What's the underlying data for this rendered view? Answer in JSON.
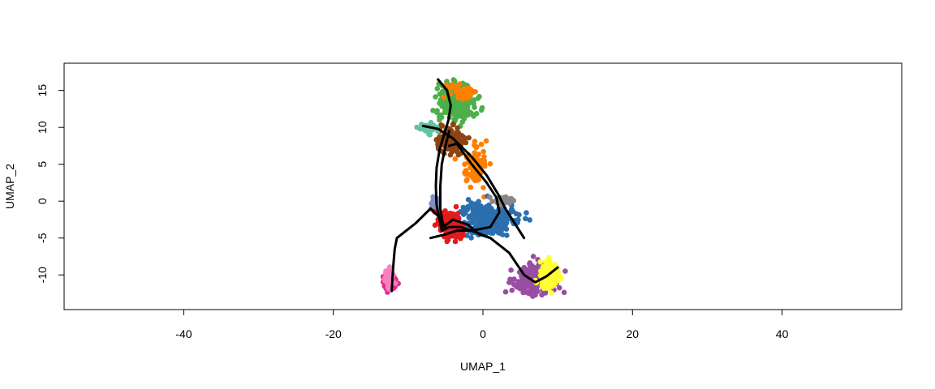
{
  "chart_data": {
    "type": "scatter",
    "title": "",
    "xlabel": "UMAP_1",
    "ylabel": "UMAP_2",
    "xlim": [
      -56,
      56
    ],
    "ylim": [
      -14.7,
      18.7
    ],
    "xticks": [
      -40,
      -20,
      0,
      20,
      40
    ],
    "yticks": [
      -10,
      -5,
      0,
      5,
      10,
      15
    ],
    "grid": false,
    "legend": "none",
    "clusters": [
      {
        "color": "#4DAF4A",
        "center": [
          -3.5,
          13.5
        ],
        "spread": [
          2.0,
          2.2
        ],
        "count": 260
      },
      {
        "color": "#8B4513",
        "center": [
          -4.5,
          8.2
        ],
        "spread": [
          1.6,
          1.5
        ],
        "count": 130
      },
      {
        "color": "#66C2A5",
        "center": [
          -7.5,
          10.0
        ],
        "spread": [
          1.0,
          0.5
        ],
        "count": 45
      },
      {
        "color": "#FF7F00",
        "center": [
          -1.0,
          4.8
        ],
        "spread": [
          1.3,
          2.2
        ],
        "count": 90
      },
      {
        "color": "#FF7F00",
        "center": [
          -3.0,
          15.0
        ],
        "spread": [
          1.5,
          1.0
        ],
        "count": 40
      },
      {
        "color": "#2C6FAE",
        "center": [
          0.5,
          -2.5
        ],
        "spread": [
          3.0,
          1.8
        ],
        "count": 300
      },
      {
        "color": "#888888",
        "center": [
          2.8,
          0.0
        ],
        "spread": [
          1.1,
          0.6
        ],
        "count": 45
      },
      {
        "color": "#7F8DBF",
        "center": [
          -6.5,
          -0.5
        ],
        "spread": [
          0.5,
          0.9
        ],
        "count": 30
      },
      {
        "color": "#E41A1C",
        "center": [
          -4.3,
          -3.2
        ],
        "spread": [
          1.3,
          1.3
        ],
        "count": 200
      },
      {
        "color": "#984EA3",
        "center": [
          7.0,
          -10.5
        ],
        "spread": [
          2.5,
          1.5
        ],
        "count": 260
      },
      {
        "color": "#FFFF33",
        "center": [
          8.8,
          -10.0
        ],
        "spread": [
          1.0,
          1.3
        ],
        "count": 160
      },
      {
        "color": "#E7298A",
        "center": [
          -12.5,
          -11.0
        ],
        "spread": [
          0.8,
          0.8
        ],
        "count": 60
      },
      {
        "color": "#F781BF",
        "center": [
          -12.5,
          -10.5
        ],
        "spread": [
          0.6,
          1.1
        ],
        "count": 40
      }
    ],
    "trajectories": [
      [
        [
          -6.0,
          16.5
        ],
        [
          -4.8,
          15.0
        ],
        [
          -4.3,
          13.0
        ],
        [
          -4.6,
          11.0
        ],
        [
          -5.2,
          9.0
        ],
        [
          -5.8,
          7.0
        ],
        [
          -6.2,
          4.5
        ],
        [
          -6.3,
          2.0
        ],
        [
          -6.2,
          -0.5
        ],
        [
          -5.8,
          -2.5
        ],
        [
          -5.5,
          -4.0
        ],
        [
          -4.5,
          -3.5
        ],
        [
          -3.0,
          -3.5
        ],
        [
          -1.0,
          -4.2
        ],
        [
          1.0,
          -5.0
        ],
        [
          3.5,
          -7.0
        ],
        [
          5.5,
          -10.0
        ],
        [
          7.0,
          -11.0
        ],
        [
          8.5,
          -10.2
        ],
        [
          10.0,
          -9.0
        ]
      ],
      [
        [
          -4.5,
          9.5
        ],
        [
          -5.0,
          7.5
        ],
        [
          -5.5,
          5.0
        ],
        [
          -5.7,
          2.0
        ],
        [
          -5.7,
          -1.0
        ],
        [
          -5.3,
          -3.5
        ],
        [
          -4.0,
          -2.5
        ],
        [
          -2.0,
          -3.2
        ],
        [
          -0.5,
          -4.5
        ],
        [
          1.0,
          -5.0
        ]
      ],
      [
        [
          -8.0,
          10.2
        ],
        [
          -6.0,
          9.8
        ],
        [
          -4.0,
          8.5
        ],
        [
          -1.5,
          6.0
        ],
        [
          0.5,
          3.5
        ],
        [
          2.0,
          1.0
        ],
        [
          3.0,
          -1.0
        ],
        [
          5.5,
          -5.0
        ]
      ],
      [
        [
          -4.5,
          7.5
        ],
        [
          -3.5,
          7.8
        ],
        [
          -1.5,
          5.0
        ],
        [
          0.5,
          2.5
        ],
        [
          1.8,
          0.5
        ],
        [
          2.2,
          -1.5
        ],
        [
          1.0,
          -3.5
        ],
        [
          -1.5,
          -4.0
        ],
        [
          -3.5,
          -4.0
        ],
        [
          -5.0,
          -4.5
        ],
        [
          -7.0,
          -5.0
        ]
      ],
      [
        [
          -12.2,
          -12.2
        ],
        [
          -12.0,
          -9.0
        ],
        [
          -11.8,
          -6.5
        ],
        [
          -11.5,
          -5.0
        ],
        [
          -9.0,
          -3.0
        ],
        [
          -7.0,
          -1.0
        ],
        [
          -6.0,
          -2.0
        ],
        [
          -5.0,
          -3.5
        ]
      ]
    ]
  }
}
